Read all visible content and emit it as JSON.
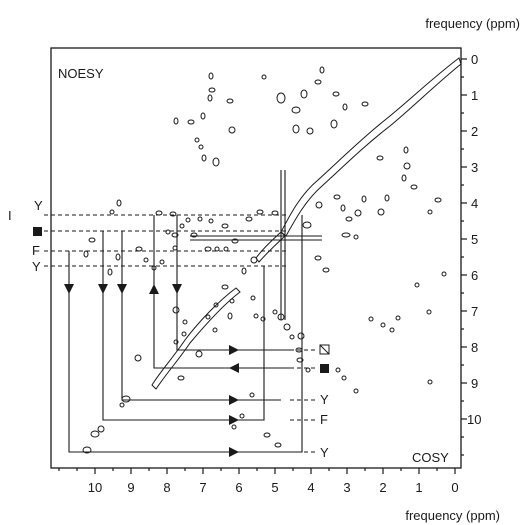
{
  "axes": {
    "top_label": "frequency (ppm)",
    "bottom_label": "frequency (ppm)",
    "right_ticks": [
      "0",
      "1",
      "2",
      "3",
      "4",
      "5",
      "6",
      "7",
      "8",
      "9",
      "10"
    ],
    "bottom_ticks": [
      "10",
      "9",
      "8",
      "7",
      "6",
      "5",
      "4",
      "3",
      "2",
      "1",
      "0"
    ]
  },
  "panels": {
    "noesy": "NOESY",
    "cosy": "COSY"
  },
  "left_labels": [
    "Y",
    "I",
    "F",
    "Y"
  ],
  "right_labels": [
    "Y",
    "F",
    "Y"
  ],
  "colors": {
    "ink": "#1a1a1a",
    "background": "#ffffff"
  }
}
